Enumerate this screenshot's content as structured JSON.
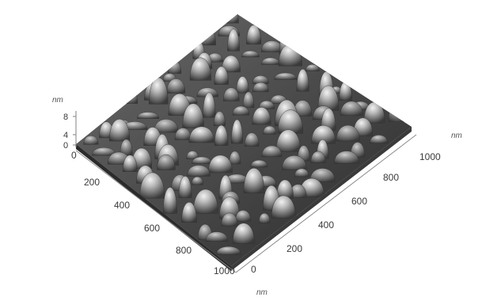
{
  "chart_data": {
    "type": "surface-3d",
    "description_source": "AFM topography render",
    "z_unit": "nm",
    "x_unit": "nm",
    "y_unit": "nm",
    "z_ticks": [
      "8",
      "4",
      "0"
    ],
    "x_ticks": [
      "0",
      "200",
      "400",
      "600",
      "800",
      "1000"
    ],
    "y_ticks": [
      "200",
      "400",
      "600",
      "800",
      "1000"
    ],
    "z_range": [
      0,
      10
    ],
    "x_range": [
      0,
      1000
    ],
    "y_range": [
      0,
      1000
    ],
    "grid": false,
    "legend": "none"
  }
}
